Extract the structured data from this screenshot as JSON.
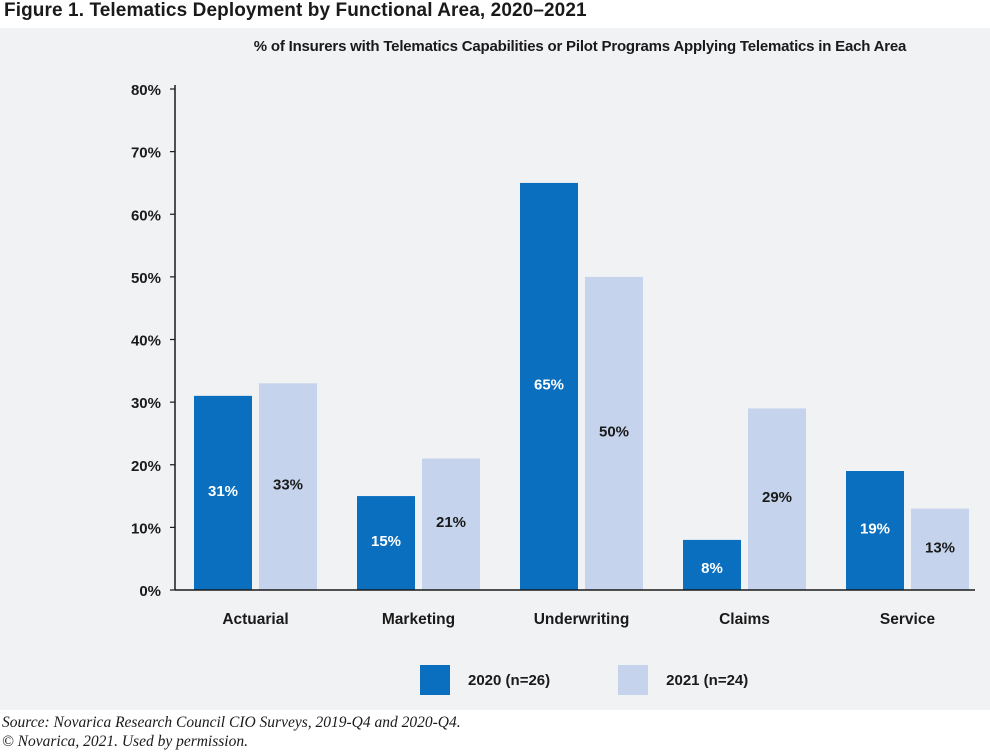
{
  "figure": {
    "title": "Figure 1. Telematics Deployment by Functional Area, 2020–2021",
    "source_line1": "Source: Novarica Research Council CIO Surveys, 2019-Q4 and 2020-Q4.",
    "source_line2": "© Novarica, 2021. Used by permission."
  },
  "colors": {
    "series_2020": "#0a6fbf",
    "series_2021": "#c5d4ec",
    "panel_bg": "#f1f2f4",
    "axis": "#1a1a1a",
    "label_on_dark": "#ffffff",
    "label_on_light": "#1a1a1a"
  },
  "chart_data": {
    "type": "bar",
    "title": "% of Insurers with Telematics Capabilities or Pilot Programs Applying Telematics in Each Area",
    "categories": [
      "Actuarial",
      "Marketing",
      "Underwriting",
      "Claims",
      "Service"
    ],
    "series": [
      {
        "name": "2020 (n=26)",
        "values": [
          31,
          15,
          65,
          8,
          19
        ],
        "labels": [
          "31%",
          "15%",
          "65%",
          "8%",
          "19%"
        ]
      },
      {
        "name": "2021 (n=24)",
        "values": [
          33,
          21,
          50,
          29,
          13
        ],
        "labels": [
          "33%",
          "21%",
          "50%",
          "29%",
          "13%"
        ]
      }
    ],
    "ylim": [
      0,
      80
    ],
    "yticks": [
      0,
      10,
      20,
      30,
      40,
      50,
      60,
      70,
      80
    ],
    "ytick_labels": [
      "0%",
      "10%",
      "20%",
      "30%",
      "40%",
      "50%",
      "60%",
      "70%",
      "80%"
    ],
    "xlabel": "",
    "ylabel": "",
    "grid": false,
    "legend_position": "bottom"
  }
}
